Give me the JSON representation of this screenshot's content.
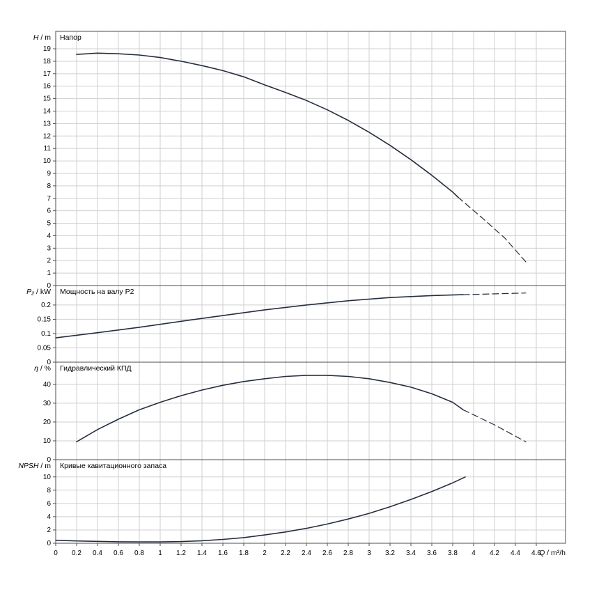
{
  "figure": {
    "colors": {
      "curve": "#252e3d",
      "grid": "#cfcfcf",
      "axis": "#4d4d4d",
      "text": "#000000",
      "bg": "#ffffff"
    },
    "x_axis": {
      "label_sym": "Q",
      "label_rest": " / m³/h",
      "xlim": [
        0,
        4.88
      ],
      "ticks": [
        0,
        0.2,
        0.4,
        0.6,
        0.8,
        1,
        1.2,
        1.4,
        1.6,
        1.8,
        2,
        2.2,
        2.4,
        2.6,
        2.8,
        3,
        3.2,
        3.4,
        3.6,
        3.8,
        4,
        4.2,
        4.4,
        4.6
      ]
    }
  },
  "chart_data": [
    {
      "type": "line",
      "title": "Напор",
      "ylabel_sym": "H",
      "ylabel_rest": " / m",
      "ylim": [
        0,
        20.4
      ],
      "yticks": [
        0,
        1,
        2,
        3,
        4,
        5,
        6,
        7,
        8,
        9,
        10,
        11,
        12,
        13,
        14,
        15,
        16,
        17,
        18,
        19
      ],
      "series": [
        {
          "name": "head-curve",
          "style": "solid",
          "points": [
            [
              0.2,
              18.55
            ],
            [
              0.4,
              18.65
            ],
            [
              0.6,
              18.6
            ],
            [
              0.8,
              18.5
            ],
            [
              1.0,
              18.3
            ],
            [
              1.2,
              18.0
            ],
            [
              1.4,
              17.65
            ],
            [
              1.6,
              17.25
            ],
            [
              1.8,
              16.75
            ],
            [
              2.0,
              16.1
            ],
            [
              2.2,
              15.5
            ],
            [
              2.4,
              14.85
            ],
            [
              2.6,
              14.1
            ],
            [
              2.8,
              13.25
            ],
            [
              3.0,
              12.3
            ],
            [
              3.2,
              11.25
            ],
            [
              3.4,
              10.1
            ],
            [
              3.6,
              8.85
            ],
            [
              3.8,
              7.5
            ],
            [
              3.85,
              7.1
            ]
          ]
        },
        {
          "name": "head-curve-extrapolated",
          "style": "dashed",
          "points": [
            [
              3.85,
              7.1
            ],
            [
              4.1,
              5.3
            ],
            [
              4.3,
              3.8
            ],
            [
              4.5,
              1.9
            ]
          ]
        }
      ]
    },
    {
      "type": "line",
      "title": "Мощность на валу P2",
      "ylabel_sym": "P₂",
      "ylabel_rest": " / kW",
      "ylim": [
        0,
        0.268
      ],
      "yticks": [
        0,
        0.05,
        0.1,
        0.15,
        0.2
      ],
      "series": [
        {
          "name": "shaft-power-curve",
          "style": "solid",
          "points": [
            [
              0,
              0.085
            ],
            [
              0.4,
              0.103
            ],
            [
              0.8,
              0.122
            ],
            [
              1.2,
              0.143
            ],
            [
              1.6,
              0.163
            ],
            [
              2.0,
              0.183
            ],
            [
              2.4,
              0.2
            ],
            [
              2.8,
              0.215
            ],
            [
              3.2,
              0.226
            ],
            [
              3.6,
              0.233
            ],
            [
              3.9,
              0.236
            ]
          ]
        },
        {
          "name": "shaft-power-extrapolated",
          "style": "dashed",
          "points": [
            [
              3.9,
              0.236
            ],
            [
              4.5,
              0.242
            ]
          ]
        }
      ]
    },
    {
      "type": "line",
      "title": "Гидравлический КПД",
      "ylabel_sym": "η",
      "ylabel_rest": " / %",
      "ylim": [
        0,
        51.8
      ],
      "yticks": [
        0,
        10,
        20,
        30,
        40
      ],
      "series": [
        {
          "name": "efficiency-curve",
          "style": "solid",
          "points": [
            [
              0.2,
              9.5
            ],
            [
              0.4,
              16
            ],
            [
              0.6,
              21.5
            ],
            [
              0.8,
              26.5
            ],
            [
              1.0,
              30.5
            ],
            [
              1.2,
              34
            ],
            [
              1.4,
              37
            ],
            [
              1.6,
              39.5
            ],
            [
              1.8,
              41.5
            ],
            [
              2.0,
              43
            ],
            [
              2.2,
              44.2
            ],
            [
              2.4,
              44.8
            ],
            [
              2.6,
              44.8
            ],
            [
              2.8,
              44.2
            ],
            [
              3.0,
              43
            ],
            [
              3.2,
              41
            ],
            [
              3.4,
              38.5
            ],
            [
              3.6,
              35
            ],
            [
              3.8,
              30.5
            ],
            [
              3.9,
              26.5
            ]
          ]
        },
        {
          "name": "efficiency-extrapolated",
          "style": "dashed",
          "points": [
            [
              3.9,
              26.5
            ],
            [
              4.2,
              18.5
            ],
            [
              4.5,
              9.5
            ]
          ]
        }
      ]
    },
    {
      "type": "line",
      "title": "Кривые кавитационного запаса",
      "ylabel_sym": "NPSH",
      "ylabel_rest": " / m",
      "ylim": [
        0,
        12.6
      ],
      "yticks": [
        0,
        2,
        4,
        6,
        8,
        10
      ],
      "series": [
        {
          "name": "npsh-curve",
          "style": "solid",
          "points": [
            [
              0,
              0.45
            ],
            [
              0.2,
              0.35
            ],
            [
              0.4,
              0.28
            ],
            [
              0.6,
              0.22
            ],
            [
              0.8,
              0.2
            ],
            [
              1.0,
              0.2
            ],
            [
              1.2,
              0.25
            ],
            [
              1.4,
              0.38
            ],
            [
              1.6,
              0.58
            ],
            [
              1.8,
              0.85
            ],
            [
              2.0,
              1.25
            ],
            [
              2.2,
              1.7
            ],
            [
              2.4,
              2.25
            ],
            [
              2.6,
              2.9
            ],
            [
              2.8,
              3.65
            ],
            [
              3.0,
              4.5
            ],
            [
              3.2,
              5.5
            ],
            [
              3.4,
              6.6
            ],
            [
              3.6,
              7.8
            ],
            [
              3.8,
              9.1
            ],
            [
              3.92,
              10.0
            ]
          ]
        }
      ]
    }
  ]
}
